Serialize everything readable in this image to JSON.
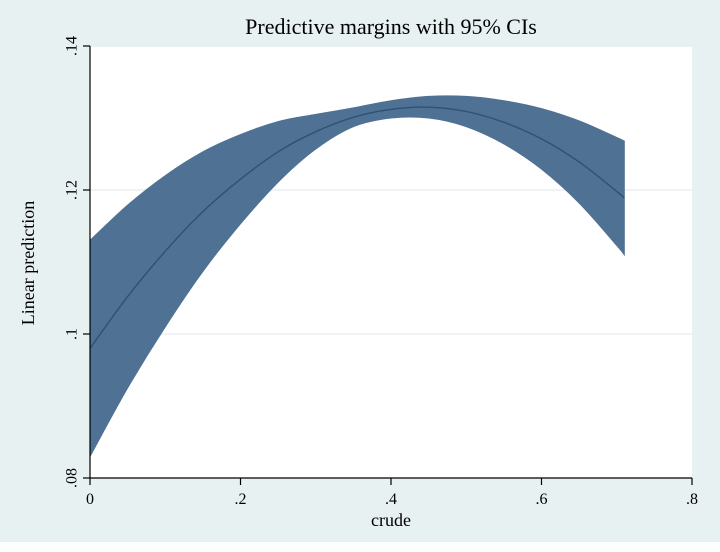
{
  "chart_data": {
    "type": "line",
    "title": "Predictive margins with 95% CIs",
    "xlabel": "crude",
    "ylabel": "Linear prediction",
    "xlim": [
      0,
      0.8
    ],
    "ylim": [
      0.08,
      0.14
    ],
    "grid": "horizontal",
    "legend": "none",
    "x_tick_values": [
      0,
      0.2,
      0.4,
      0.6,
      0.8
    ],
    "x_tick_labels": [
      "0",
      ".2",
      ".4",
      ".6",
      ".8"
    ],
    "y_tick_values": [
      0.08,
      0.1,
      0.12,
      0.14
    ],
    "y_tick_labels": [
      ".08",
      ".1",
      ".12",
      ".14"
    ],
    "series": [
      {
        "name": "Linear prediction",
        "x": [
          0,
          0.05,
          0.1,
          0.15,
          0.2,
          0.25,
          0.3,
          0.35,
          0.4,
          0.45,
          0.5,
          0.55,
          0.6,
          0.65,
          0.7,
          0.71
        ],
        "mean": [
          0.098,
          0.1052,
          0.1115,
          0.117,
          0.1215,
          0.1253,
          0.1281,
          0.1301,
          0.1312,
          0.1315,
          0.1309,
          0.1294,
          0.1271,
          0.1239,
          0.1198,
          0.1189
        ],
        "ci_upper": [
          0.113,
          0.1179,
          0.122,
          0.1253,
          0.1277,
          0.1295,
          0.1305,
          0.1314,
          0.1324,
          0.133,
          0.133,
          0.1324,
          0.1313,
          0.1296,
          0.1273,
          0.1268
        ],
        "ci_lower": [
          0.083,
          0.0925,
          0.101,
          0.1087,
          0.1153,
          0.1211,
          0.1257,
          0.1288,
          0.13,
          0.13,
          0.1288,
          0.1264,
          0.1229,
          0.1182,
          0.1123,
          0.111
        ]
      }
    ]
  },
  "colors": {
    "figure_background": "#e8f1f2",
    "plot_background": "#ffffff",
    "gridline": "#dde9ed",
    "axis": "#000000",
    "ci_band": "#4e7194",
    "mean_line": "#2d5277",
    "text": "#000000"
  }
}
